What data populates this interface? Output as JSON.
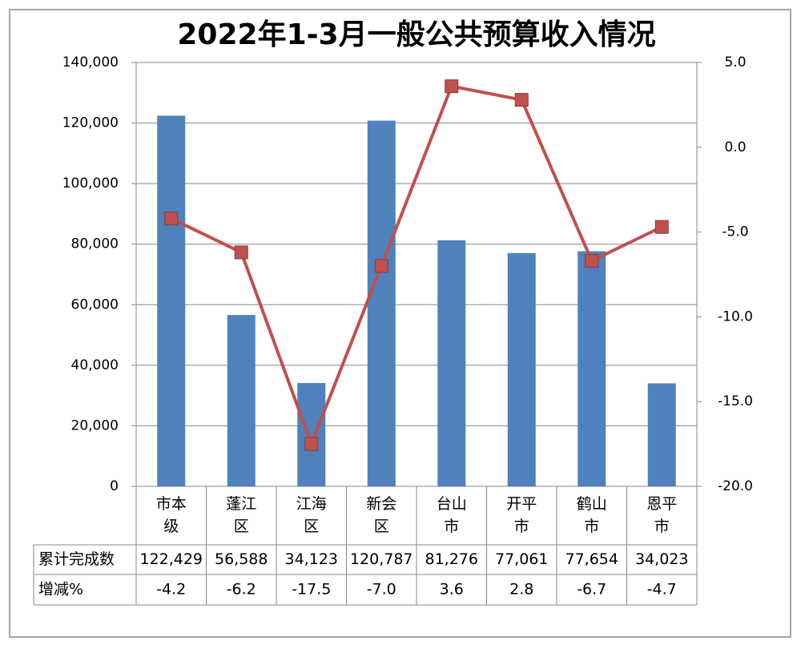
{
  "chart_data": {
    "type": "bar-line",
    "title": "2022年1-3月一般公共预算收入情况",
    "categories": [
      "市本级",
      "蓬江区",
      "江海区",
      "新会区",
      "台山市",
      "开平市",
      "鹤山市",
      "恩平市"
    ],
    "series": [
      {
        "name": "累计完成数",
        "type": "bar",
        "color": "#4f81bd",
        "values": [
          122429,
          56588,
          34123,
          120787,
          81276,
          77061,
          77654,
          34023
        ],
        "value_labels": [
          "122,429",
          "56,588",
          "34,123",
          "120,787",
          "81,276",
          "77,061",
          "77,654",
          "34,023"
        ]
      },
      {
        "name": "增减%",
        "type": "line",
        "axis": "y2",
        "color": "#c0504d",
        "values": [
          -4.2,
          -6.2,
          -17.5,
          -7.0,
          3.6,
          2.8,
          -6.7,
          -4.7
        ],
        "value_labels": [
          "-4.2",
          "-6.2",
          "-17.5",
          "-7.0",
          "3.6",
          "2.8",
          "-6.7",
          "-4.7"
        ]
      }
    ],
    "ylim": [
      0,
      140000
    ],
    "yticks": [
      0,
      {
        "value": 20000,
        "label": "20,000"
      },
      {
        "value": 40000,
        "label": "40,000"
      },
      {
        "value": 60000,
        "label": "60,000"
      },
      {
        "value": 80000,
        "label": "80,000"
      },
      {
        "value": 100000,
        "label": "100,000"
      },
      {
        "value": 120000,
        "label": "120,000"
      },
      {
        "value": 140000,
        "label": "140,000"
      }
    ],
    "y2lim": [
      -20,
      5
    ],
    "y2ticks": [
      {
        "value": -20,
        "label": "-20.0"
      },
      {
        "value": -15,
        "label": "-15.0"
      },
      {
        "value": -10,
        "label": "-10.0"
      },
      {
        "value": -5,
        "label": "-5.0"
      },
      {
        "value": 0,
        "label": "0.0"
      },
      {
        "value": 5,
        "label": "5.0"
      }
    ],
    "grid": true
  }
}
